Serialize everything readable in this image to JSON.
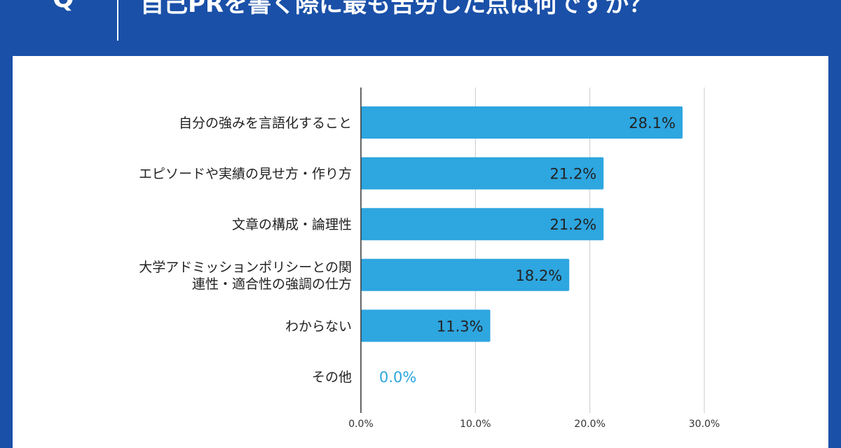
{
  "header": {
    "q_label": "Q",
    "title": "自己PRを書く際に最も苦労した点は何ですか？"
  },
  "chart_data": {
    "type": "bar",
    "orientation": "horizontal",
    "categories": [
      "自分の強みを言語化すること",
      "エピソードや実績の見せ方・作り方",
      "文章の構成・論理性",
      "大学アドミッションポリシーとの関\n連性・適合性の強調の仕方",
      "わからない",
      "その他"
    ],
    "values": [
      28.1,
      21.2,
      21.2,
      18.2,
      11.3,
      0.0
    ],
    "value_labels": [
      "28.1%",
      "21.2%",
      "21.2%",
      "18.2%",
      "11.3%",
      "0.0%"
    ],
    "xlim": [
      0,
      30
    ],
    "ticks": [
      0,
      10,
      20,
      30
    ],
    "tick_labels": [
      "0.0%",
      "10.0%",
      "20.0%",
      "30.0%"
    ],
    "grid": true,
    "bar_color": "#2ea6e0"
  }
}
